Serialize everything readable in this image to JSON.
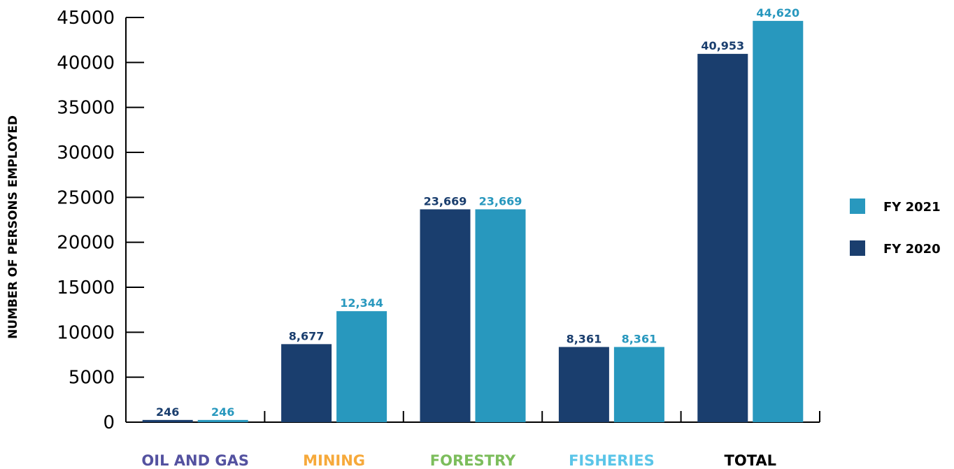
{
  "chart_data": {
    "type": "bar",
    "title": "",
    "xlabel": "",
    "ylabel": "NUMBER OF PERSONS EMPLOYED",
    "ylim": [
      0,
      45000
    ],
    "yticks": [
      0,
      5000,
      10000,
      15000,
      20000,
      25000,
      30000,
      35000,
      40000,
      45000
    ],
    "categories": [
      "OIL AND GAS",
      "MINING",
      "FORESTRY",
      "FISHERIES",
      "TOTAL"
    ],
    "category_colors": [
      "#5452a0",
      "#f6a93b",
      "#7cbd5c",
      "#5bc5e8",
      "#000000"
    ],
    "series": [
      {
        "name": "FY 2020",
        "color": "#1a3e6e",
        "values": [
          246,
          8677,
          23669,
          8361,
          40953
        ],
        "labels": [
          "246",
          "8,677",
          "23,669",
          "8,361",
          "40,953"
        ]
      },
      {
        "name": "FY 2021",
        "color": "#2898be",
        "values": [
          246,
          12344,
          23669,
          8361,
          44620
        ],
        "labels": [
          "246",
          "12,344",
          "23,669",
          "8,361",
          "44,620"
        ]
      }
    ],
    "legend": {
      "position": "right",
      "order": [
        "FY 2021",
        "FY 2020"
      ]
    },
    "grid": false
  }
}
